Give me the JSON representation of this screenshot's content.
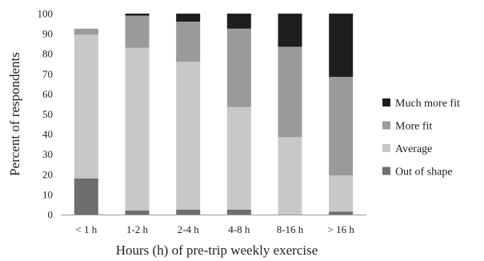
{
  "chart_data": {
    "type": "bar",
    "stacked": true,
    "categories": [
      "< 1 h",
      "1-2 h",
      "2-4 h",
      "4-8 h",
      "8-16 h",
      "> 16 h"
    ],
    "series": [
      {
        "name": "Out of shape",
        "color": "#6e6e6e",
        "values": [
          18,
          2,
          2.5,
          2.5,
          0,
          1.5
        ]
      },
      {
        "name": "Average",
        "color": "#c8c8c8",
        "values": [
          71.5,
          81,
          73.5,
          51,
          38.5,
          18
        ]
      },
      {
        "name": "More fit",
        "color": "#9a9a9a",
        "values": [
          3,
          16,
          20,
          39,
          45,
          49
        ]
      },
      {
        "name": "Much more fit",
        "color": "#1e1e1e",
        "values": [
          0,
          1,
          4,
          7.5,
          16.5,
          31.5
        ]
      }
    ],
    "xlabel": "Hours (h) of pre-trip weekly exercise",
    "ylabel": "Percent of respondents",
    "ylim": [
      0,
      100
    ],
    "yticks": [
      0,
      10,
      20,
      30,
      40,
      50,
      60,
      70,
      80,
      90,
      100
    ],
    "grid": false,
    "legend_position": "right",
    "legend_order": [
      "Much more fit",
      "More fit",
      "Average",
      "Out of shape"
    ]
  }
}
